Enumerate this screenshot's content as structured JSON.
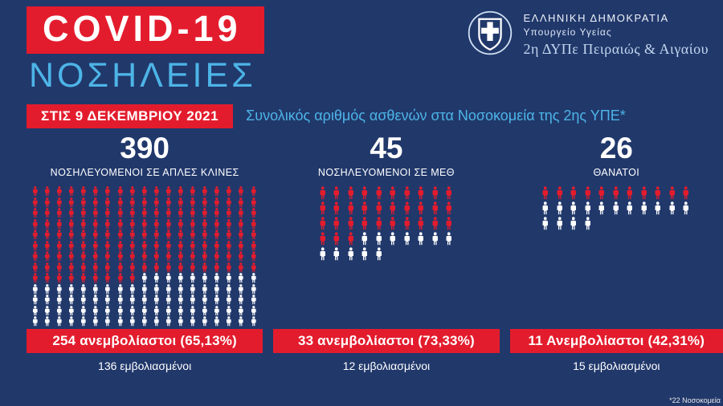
{
  "colors": {
    "background": "#21386b",
    "accent_red": "#e31c2d",
    "accent_light_blue": "#4db4e7",
    "icon_unvaccinated": "#e31c2d",
    "icon_vaccinated": "#ffffff"
  },
  "header": {
    "title": "COVID-19",
    "subtitle": "ΝΟΣΗΛΕΙΕΣ",
    "org": {
      "emblem_icon": "greek-ministry-cross-shield",
      "line1": "ΕΛΛΗΝΙΚΗ ΔΗΜΟΚΡΑΤΙΑ",
      "line2": "Υπουργείο Υγείας",
      "line3": "2η ΔΥΠε Πειραιώς & Αιγαίου"
    }
  },
  "banner": {
    "date": "ΣΤΙΣ 9 ΔΕΚΕΜΒΡΙΟΥ 2021",
    "description": "Συνολικός αριθμός ασθενών στα Νοσοκομεία της 2ης ΥΠΕ*"
  },
  "columns": [
    {
      "value": "390",
      "label": "ΝΟΣΗΛΕΥΟΜΕΝΟΙ ΣΕ ΑΠΛΕΣ ΚΛΙΝΕΣ",
      "unvaccinated_label": "254 ανεμβολίαστοι (65,13%)",
      "vaccinated_label": "136 εμβολιασμένοι",
      "icons": {
        "per_row": 19,
        "red": 161,
        "white": 86
      }
    },
    {
      "value": "45",
      "label": "ΝΟΣΗΛΕΥΟΜΕΝΟΙ ΣΕ ΜΕΘ",
      "unvaccinated_label": "33 ανεμβολίαστοι (73,33%)",
      "vaccinated_label": "12 εμβολιασμένοι",
      "icons": {
        "per_row": 10,
        "red": 33,
        "white": 12
      }
    },
    {
      "value": "26",
      "label": "ΘΑΝΑΤΟΙ",
      "unvaccinated_label": "11 Ανεμβολίαστοι (42,31%)",
      "vaccinated_label": "15 εμβολιασμένοι",
      "icons": {
        "per_row": 11,
        "red": 11,
        "white": 15
      }
    }
  ],
  "footnote": "*22 Νοσοκομεία",
  "chart_data": {
    "type": "bar",
    "style": "pictogram",
    "title": "Συνολικός αριθμός ασθενών στα Νοσοκομεία της 2ης ΥΠΕ*",
    "date": "ΣΤΙΣ 9 ΔΕΚΕΜΒΡΙΟΥ 2021",
    "categories": [
      "ΝΟΣΗΛΕΥΟΜΕΝΟΙ ΣΕ ΑΠΛΕΣ ΚΛΙΝΕΣ",
      "ΝΟΣΗΛΕΥΟΜΕΝΟΙ ΣΕ ΜΕΘ",
      "ΘΑΝΑΤΟΙ"
    ],
    "totals": [
      390,
      45,
      26
    ],
    "series": [
      {
        "name": "ανεμβολίαστοι",
        "values": [
          254,
          33,
          11
        ],
        "percents": [
          "65,13%",
          "73,33%",
          "42,31%"
        ],
        "color": "#e31c2d"
      },
      {
        "name": "εμβολιασμένοι",
        "values": [
          136,
          12,
          15
        ],
        "color": "#ffffff"
      }
    ],
    "legend_position": "none",
    "grid": false,
    "footnote": "*22 Νοσοκομεία"
  }
}
